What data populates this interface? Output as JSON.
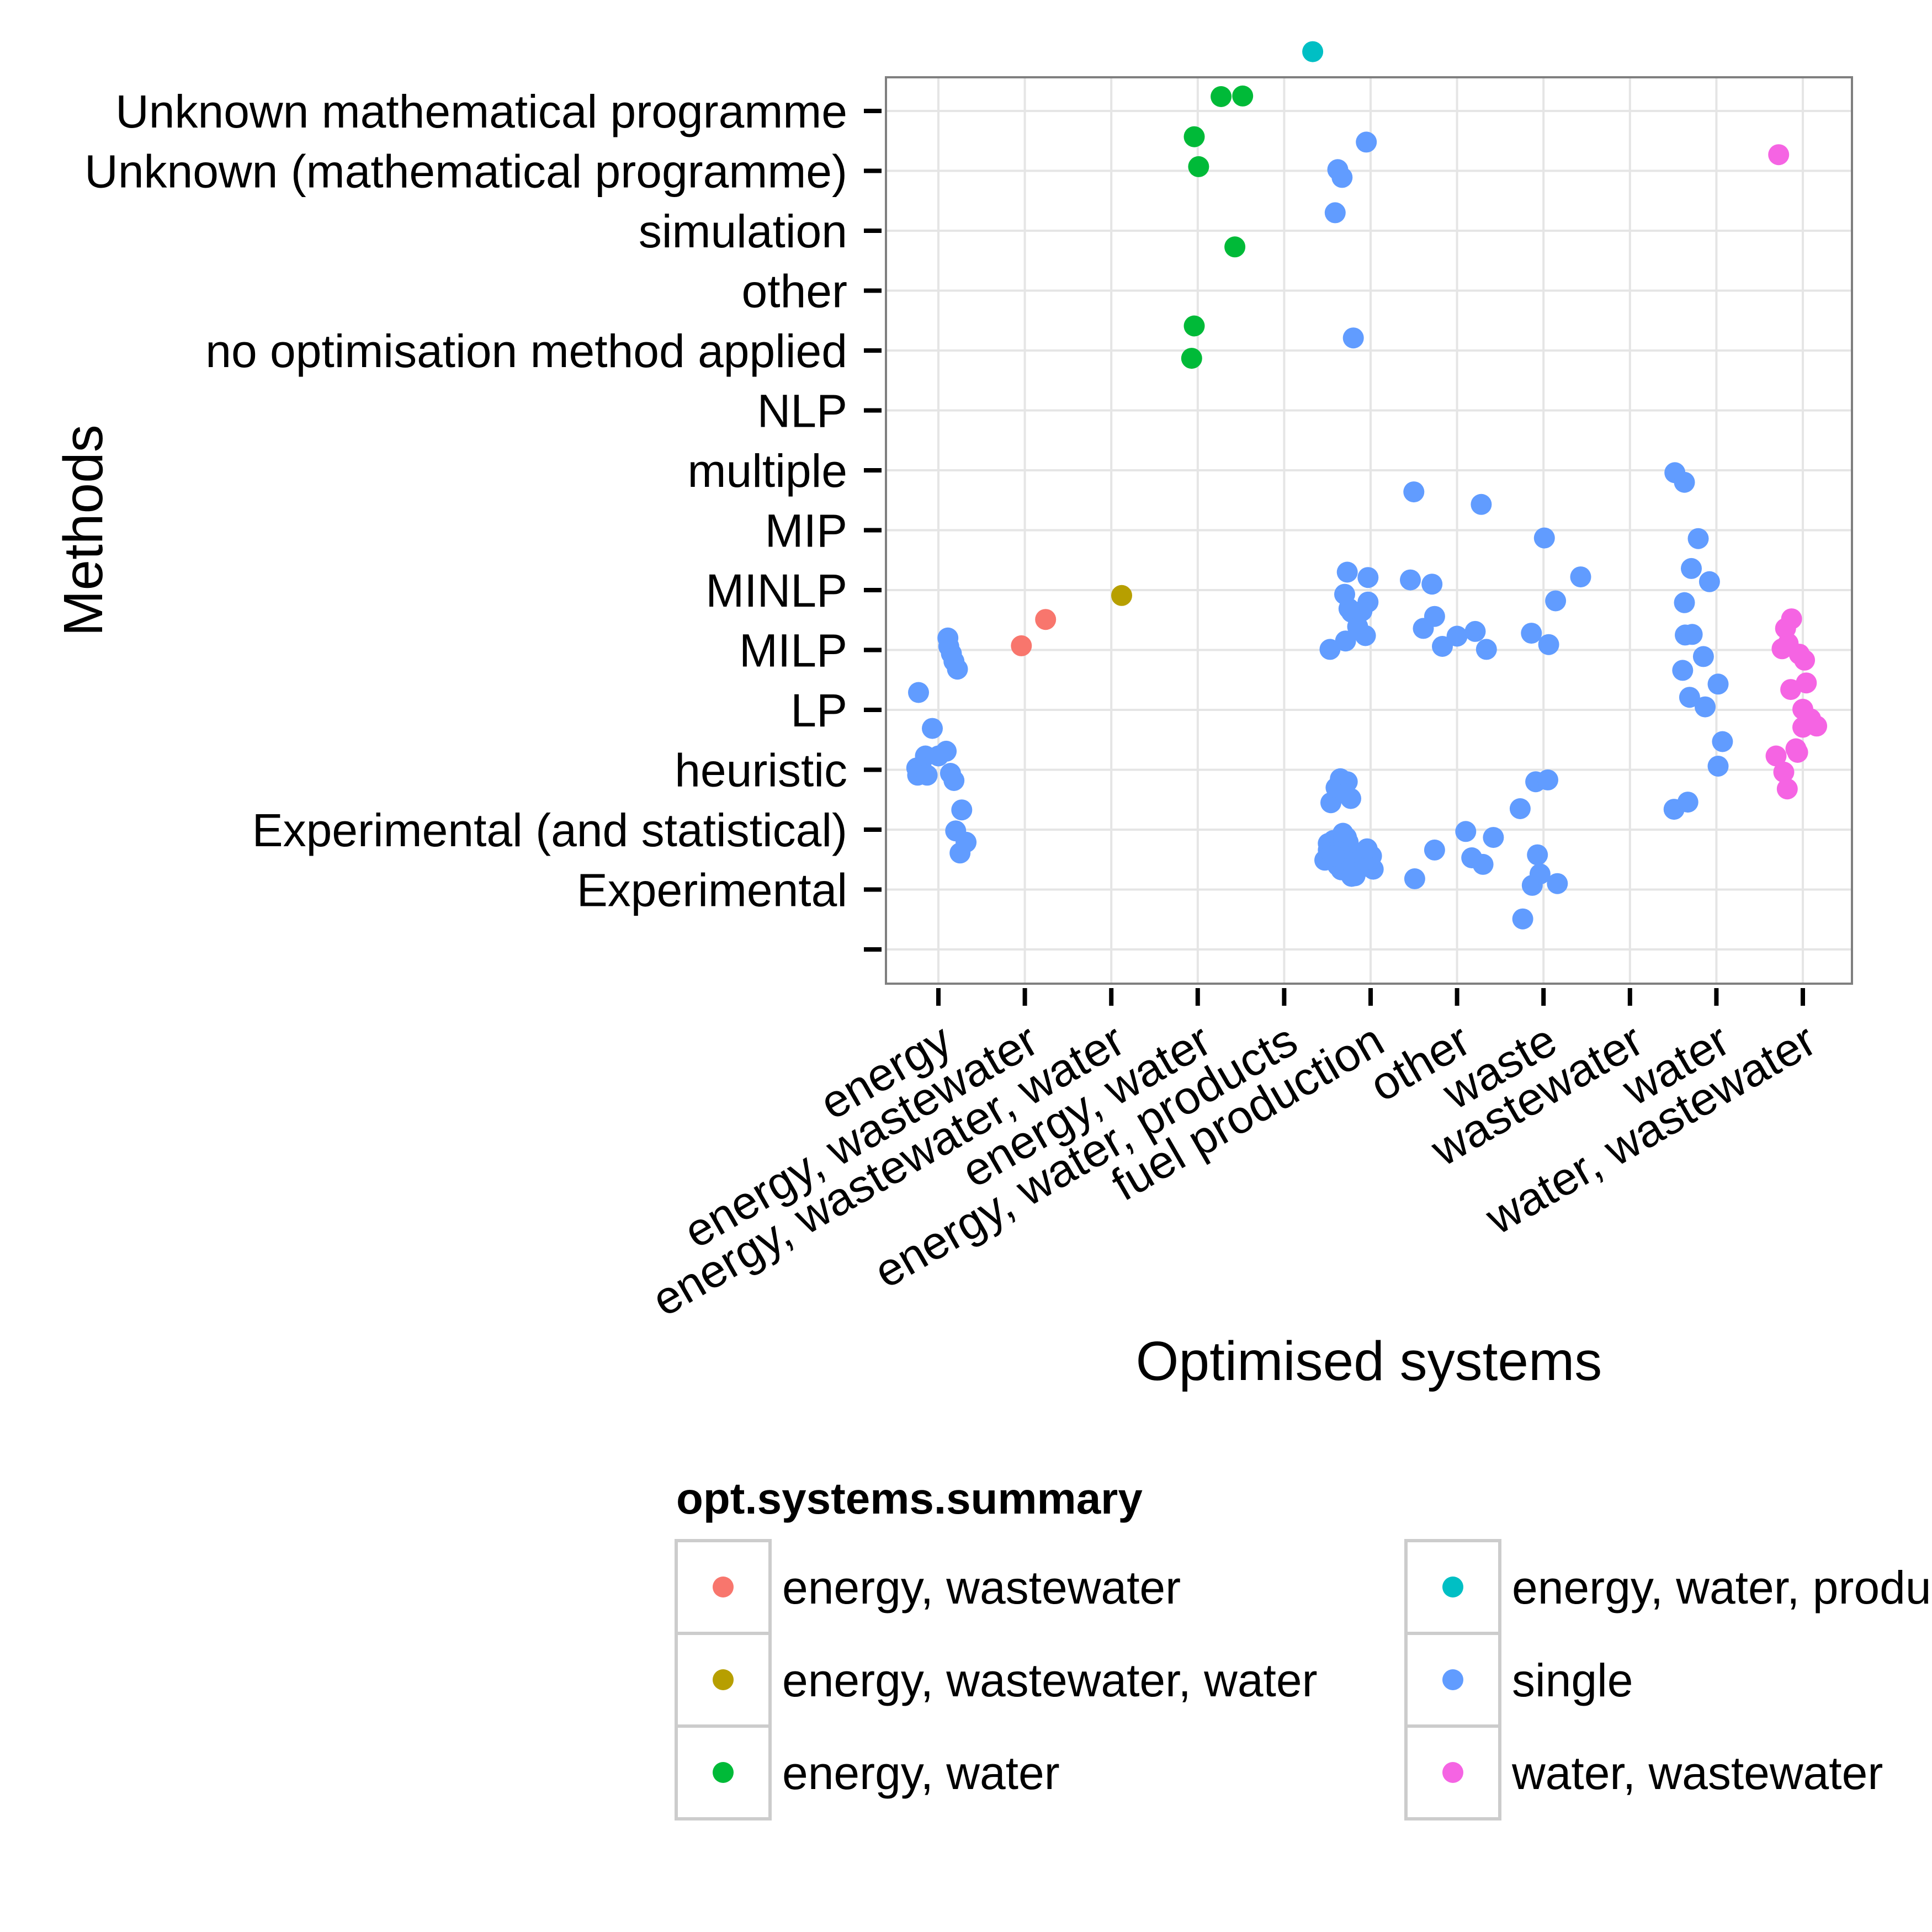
{
  "chart_data": {
    "type": "scatter",
    "jitter": true,
    "xlabel": "Optimised systems",
    "ylabel": "Methods",
    "categories_x": [
      "energy",
      "energy, wastewater",
      "energy, wastewater, water",
      "energy, water",
      "energy, water, products",
      "fuel production",
      "other",
      "waste",
      "wastewater",
      "water",
      "water, wastewater"
    ],
    "categories_y": [
      "",
      "Experimental",
      "Experimental (and statistical)",
      "heuristic",
      "LP",
      "MILP",
      "MINLP",
      "MIP",
      "multiple",
      "NLP",
      "no optimisation method applied",
      "other",
      "simulation",
      "Unknown (mathematical programme)",
      "Unknown mathematical programme"
    ],
    "grid": true,
    "legend": {
      "title": "opt.systems.summary",
      "position": "bottom",
      "entries": [
        {
          "name": "energy, wastewater",
          "color": "#F8766D"
        },
        {
          "name": "energy, wastewater, water",
          "color": "#B79F00"
        },
        {
          "name": "energy, water",
          "color": "#00BA38"
        },
        {
          "name": "energy, water, products",
          "color": "#00BFC4"
        },
        {
          "name": "single",
          "color": "#619CFF"
        },
        {
          "name": "water, wastewater",
          "color": "#F564E3"
        }
      ]
    },
    "series": [
      {
        "name": "energy, wastewater",
        "points": [
          [
            1.96,
            5.07
          ],
          [
            2.24,
            5.51
          ]
        ]
      },
      {
        "name": "energy, wastewater, water",
        "points": [
          [
            3.12,
            5.91
          ]
        ]
      },
      {
        "name": "energy, water",
        "points": [
          [
            3.93,
            9.87
          ],
          [
            3.96,
            10.41
          ],
          [
            4.43,
            11.73
          ],
          [
            4.01,
            13.07
          ],
          [
            3.96,
            13.57
          ],
          [
            4.52,
            14.25
          ],
          [
            4.27,
            14.24
          ]
        ]
      },
      {
        "name": "energy, water, products",
        "points": [
          [
            5.33,
            14.99
          ]
        ]
      },
      {
        "name": "single",
        "points": [
          [
            0.77,
            4.29
          ],
          [
            0.93,
            3.69
          ],
          [
            0.85,
            3.23
          ],
          [
            0.8,
            3.04
          ],
          [
            0.75,
            3.03
          ],
          [
            0.76,
            2.91
          ],
          [
            0.87,
            2.91
          ],
          [
            1.0,
            3.23
          ],
          [
            1.09,
            3.31
          ],
          [
            1.15,
            4.94
          ],
          [
            1.12,
            5.06
          ],
          [
            1.18,
            4.81
          ],
          [
            1.22,
            4.68
          ],
          [
            1.11,
            5.2
          ],
          [
            1.18,
            2.82
          ],
          [
            1.14,
            2.94
          ],
          [
            1.27,
            2.33
          ],
          [
            1.2,
            1.98
          ],
          [
            1.32,
            1.79
          ],
          [
            1.25,
            1.61
          ],
          [
            5.47,
            1.49
          ],
          [
            5.51,
            1.66
          ],
          [
            5.59,
            1.61
          ],
          [
            5.66,
            1.33
          ],
          [
            5.74,
            1.79
          ],
          [
            5.92,
            1.61
          ],
          [
            5.82,
            1.23
          ],
          [
            6.03,
            1.34
          ],
          [
            5.99,
            1.53
          ],
          [
            5.51,
            1.77
          ],
          [
            5.57,
            1.82
          ],
          [
            5.62,
            1.4
          ],
          [
            5.77,
            1.43
          ],
          [
            5.95,
            1.39
          ],
          [
            6.01,
            1.56
          ],
          [
            5.89,
            1.38
          ],
          [
            5.84,
            1.55
          ],
          [
            5.52,
            1.71
          ],
          [
            5.68,
            1.94
          ],
          [
            5.72,
            1.87
          ],
          [
            5.55,
            1.61
          ],
          [
            5.61,
            1.49
          ],
          [
            5.71,
            1.38
          ],
          [
            5.8,
            1.28
          ],
          [
            5.87,
            1.48
          ],
          [
            5.93,
            1.49
          ],
          [
            5.96,
            1.68
          ],
          [
            5.78,
            1.22
          ],
          [
            5.69,
            1.87
          ],
          [
            5.63,
            1.63
          ],
          [
            5.58,
            1.56
          ],
          [
            5.54,
            2.45
          ],
          [
            5.6,
            2.7
          ],
          [
            5.73,
            2.8
          ],
          [
            5.77,
            2.52
          ],
          [
            5.65,
            2.85
          ],
          [
            5.71,
            2.6
          ],
          [
            5.53,
            5.01
          ],
          [
            5.71,
            5.15
          ],
          [
            5.78,
            5.63
          ],
          [
            5.85,
            5.39
          ],
          [
            5.97,
            5.8
          ],
          [
            5.9,
            5.65
          ],
          [
            5.75,
            5.69
          ],
          [
            5.7,
            5.93
          ],
          [
            5.94,
            5.24
          ],
          [
            5.97,
            6.21
          ],
          [
            5.73,
            6.3
          ],
          [
            5.8,
            10.21
          ],
          [
            5.59,
            12.3
          ],
          [
            5.67,
            12.89
          ],
          [
            5.62,
            13.02
          ],
          [
            5.95,
            13.48
          ],
          [
            6.83,
            5.06
          ],
          [
            6.71,
            6.1
          ],
          [
            6.46,
            6.17
          ],
          [
            6.74,
            1.66
          ],
          [
            6.51,
            1.18
          ],
          [
            6.61,
            5.36
          ],
          [
            6.5,
            7.64
          ],
          [
            6.74,
            5.56
          ],
          [
            7.34,
            5.01
          ],
          [
            7.28,
            7.43
          ],
          [
            7.0,
            5.23
          ],
          [
            7.17,
            1.53
          ],
          [
            7.3,
            1.42
          ],
          [
            7.1,
            1.97
          ],
          [
            7.42,
            1.87
          ],
          [
            7.21,
            5.31
          ],
          [
            8.43,
            6.22
          ],
          [
            8.14,
            5.82
          ],
          [
            8.01,
            6.87
          ],
          [
            7.86,
            5.28
          ],
          [
            8.06,
            5.09
          ],
          [
            7.73,
            2.35
          ],
          [
            7.91,
            2.8
          ],
          [
            8.05,
            2.83
          ],
          [
            7.93,
            1.58
          ],
          [
            7.76,
            0.51
          ],
          [
            7.87,
            1.07
          ],
          [
            7.96,
            1.26
          ],
          [
            8.16,
            1.1
          ],
          [
            9.79,
            6.86
          ],
          [
            9.92,
            6.14
          ],
          [
            9.63,
            5.79
          ],
          [
            9.52,
            7.96
          ],
          [
            9.63,
            7.8
          ],
          [
            9.71,
            6.36
          ],
          [
            9.64,
            5.25
          ],
          [
            9.61,
            4.66
          ],
          [
            9.87,
            4.05
          ],
          [
            9.69,
            4.21
          ],
          [
            10.02,
            3.06
          ],
          [
            9.72,
            5.26
          ],
          [
            10.07,
            3.47
          ],
          [
            9.51,
            2.34
          ],
          [
            9.67,
            2.46
          ],
          [
            10.02,
            4.43
          ],
          [
            9.85,
            4.89
          ]
        ]
      },
      {
        "name": "water, wastewater",
        "points": [
          [
            10.8,
            5.36
          ],
          [
            10.86,
            4.34
          ],
          [
            10.83,
            5.11
          ],
          [
            11.02,
            4.83
          ],
          [
            10.96,
            4.93
          ],
          [
            11.0,
            4.01
          ],
          [
            10.76,
            5.02
          ],
          [
            10.87,
            5.52
          ],
          [
            11.04,
            4.45
          ],
          [
            11.09,
            3.85
          ],
          [
            10.69,
            3.23
          ],
          [
            10.92,
            3.35
          ],
          [
            10.94,
            3.29
          ],
          [
            11.16,
            3.73
          ],
          [
            11.0,
            3.71
          ],
          [
            10.82,
            2.68
          ],
          [
            10.78,
            2.96
          ],
          [
            10.72,
            13.27
          ]
        ]
      }
    ]
  }
}
